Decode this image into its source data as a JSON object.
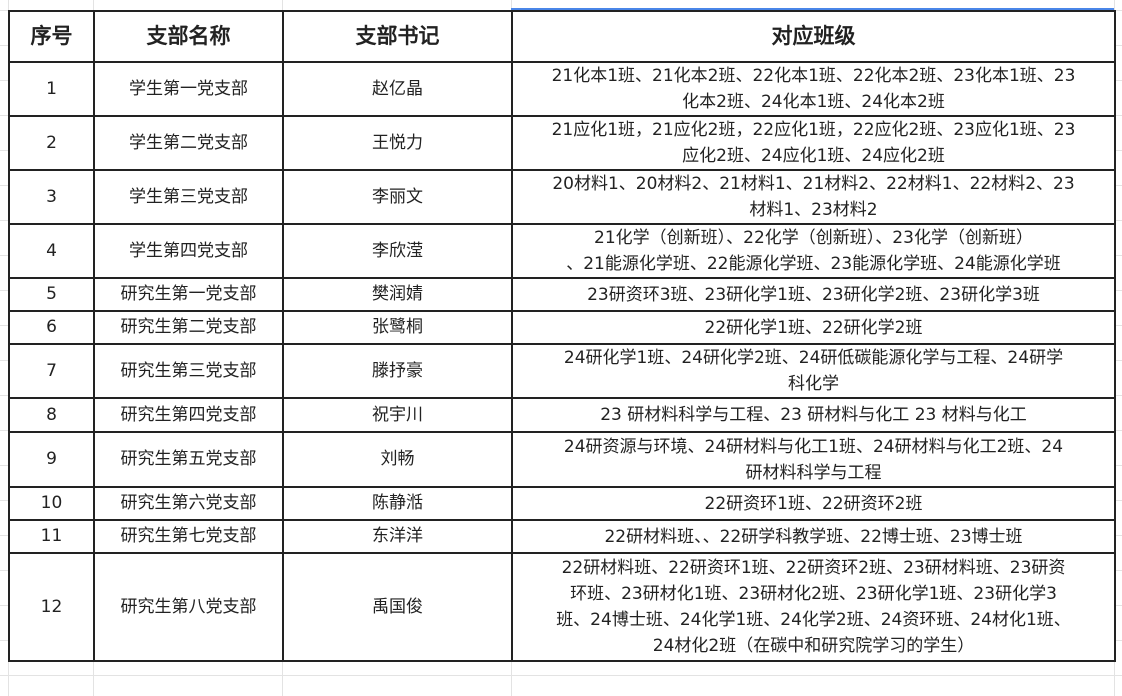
{
  "headers": [
    "序号",
    "支部名称",
    "支部书记",
    "对应班级"
  ],
  "rows": [
    {
      "no": "1",
      "branch": "学生第一党支部",
      "secretary": "赵亿晶",
      "classes": [
        "21化本1班、21化本2班、22化本1班、22化本2班、23化本1班、23",
        "化本2班、24化本1班、24化本2班"
      ]
    },
    {
      "no": "2",
      "branch": "学生第二党支部",
      "secretary": "王悦力",
      "classes": [
        "21应化1班，21应化2班，22应化1班，22应化2班、23应化1班、23",
        "应化2班、24应化1班、24应化2班"
      ]
    },
    {
      "no": "3",
      "branch": "学生第三党支部",
      "secretary": "李丽文",
      "classes": [
        "20材料1、20材料2、21材料1、21材料2、22材料1、22材料2、23",
        "材料1、23材料2"
      ]
    },
    {
      "no": "4",
      "branch": "学生第四党支部",
      "secretary": "李欣滢",
      "classes": [
        "21化学（创新班）、22化学（创新班）、23化学（创新班）",
        "、21能源化学班、22能源化学班、23能源化学班、24能源化学班"
      ]
    },
    {
      "no": "5",
      "branch": "研究生第一党支部",
      "secretary": "樊润婧",
      "classes": [
        "23研资环3班、23研化学1班、23研化学2班、23研化学3班"
      ]
    },
    {
      "no": "6",
      "branch": "研究生第二党支部",
      "secretary": "张鹭桐",
      "classes": [
        "22研化学1班、22研化学2班"
      ]
    },
    {
      "no": "7",
      "branch": "研究生第三党支部",
      "secretary": "滕抒豪",
      "classes": [
        "24研化学1班、24研化学2班、24研低碳能源化学与工程、24研学",
        "科化学"
      ]
    },
    {
      "no": "8",
      "branch": "研究生第四党支部",
      "secretary": "祝宇川",
      "classes": [
        "23 研材料科学与工程、23 研材料与化工 23 材料与化工"
      ]
    },
    {
      "no": "9",
      "branch": "研究生第五党支部",
      "secretary": "刘畅",
      "classes": [
        "24研资源与环境、24研材料与化工1班、24研材料与化工2班、24",
        "研材料科学与工程"
      ]
    },
    {
      "no": "10",
      "branch": "研究生第六党支部",
      "secretary": "陈静湉",
      "classes": [
        "22研资环1班、22研资环2班"
      ]
    },
    {
      "no": "11",
      "branch": "研究生第七党支部",
      "secretary": "东洋洋",
      "classes": [
        "22研材料班、、22研学科教学班、22博士班、23博士班"
      ]
    },
    {
      "no": "12",
      "branch": "研究生第八党支部",
      "secretary": "禹国俊",
      "classes": [
        "22研材料班、22研资环1班、22研资环2班、23研材料班、23研资",
        "环班、23研材化1班、23研材化2班、23研化学1班、23研化学3",
        "班、24博士班、24化学1班、24化学2班、24资环班、24材化1班、",
        "24材化2班（在碳中和研究院学习的学生）"
      ]
    }
  ]
}
